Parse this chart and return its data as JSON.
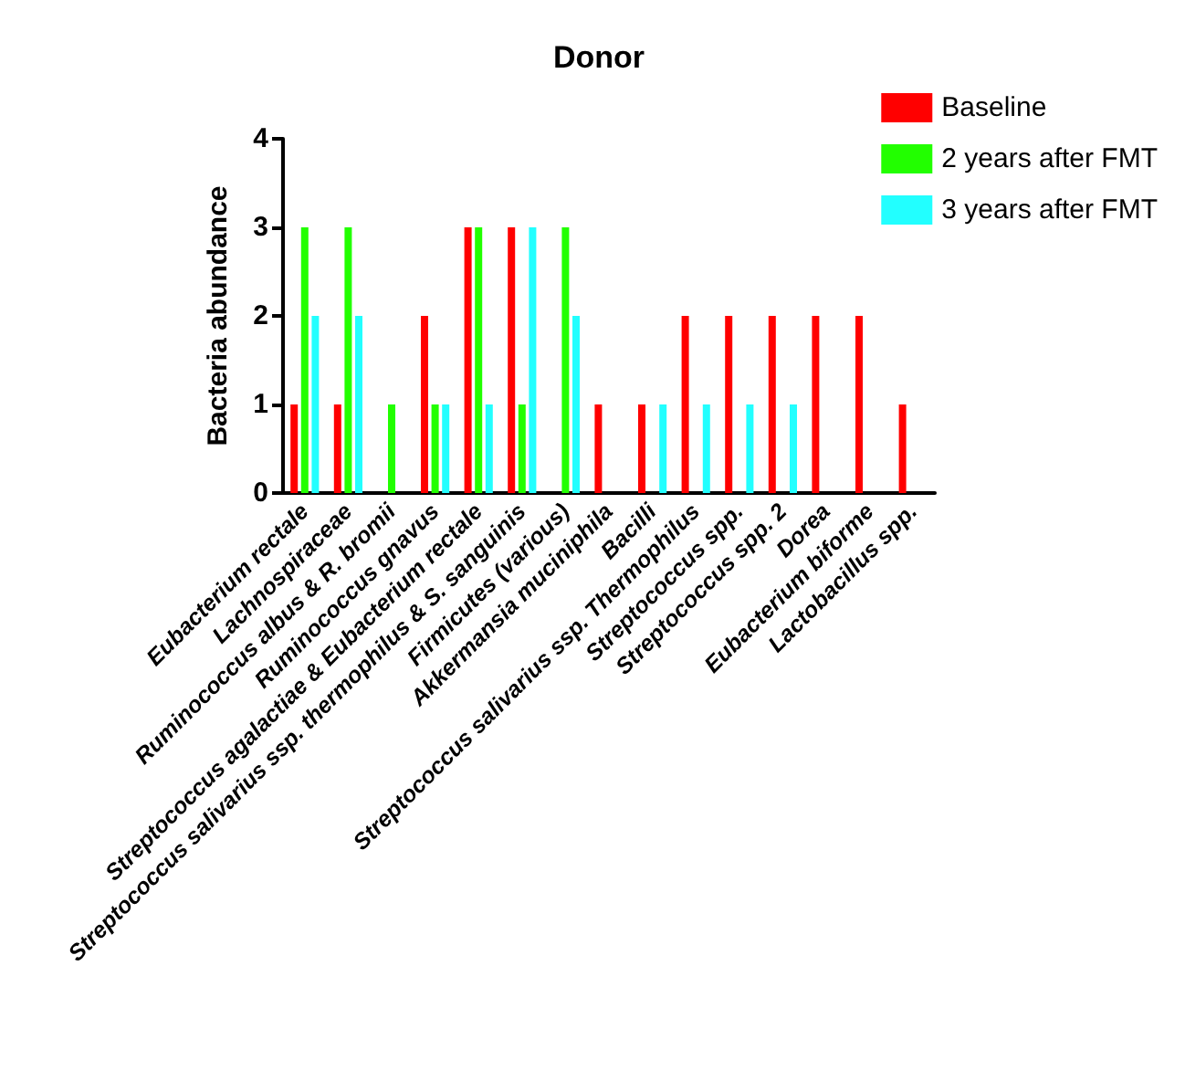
{
  "chart_data": {
    "type": "bar",
    "title": "Donor",
    "ylabel": "Bacteria abundance",
    "categories": [
      "Eubacterium rectale",
      "Lachnospiraceae",
      "Ruminococcus albus & R. bromii",
      "Ruminococcus gnavus",
      "Streptococcus agalactiae & Eubacterium rectale",
      "Streptococcus salivarius ssp. thermophilus & S. sanguinis",
      "Firmicutes (various)",
      "Akkermansia muciniphila",
      "Bacilli",
      "Streptococcus salivarius ssp. Thermophilus",
      "Streptococcus spp.",
      "Streptococcus spp. 2",
      "Dorea",
      "Eubacterium biforme",
      "Lactobacillus spp."
    ],
    "series": [
      {
        "name": "Baseline",
        "color": "#ff0000",
        "values": [
          1,
          1,
          0,
          2,
          3,
          3,
          0,
          1,
          1,
          2,
          2,
          2,
          2,
          2,
          1
        ]
      },
      {
        "name": "2 years after FMT",
        "color": "#22ff00",
        "values": [
          3,
          3,
          1,
          1,
          3,
          1,
          3,
          0,
          0,
          0,
          0,
          0,
          0,
          0,
          0
        ]
      },
      {
        "name": "3 years after FMT",
        "color": "#22ffff",
        "values": [
          2,
          2,
          0,
          1,
          1,
          3,
          2,
          0,
          1,
          1,
          1,
          1,
          0,
          0,
          0
        ]
      }
    ],
    "ylim": [
      0,
      4
    ],
    "yticks": [
      0,
      1,
      2,
      3,
      4
    ],
    "grid": false,
    "legend": "top right"
  }
}
